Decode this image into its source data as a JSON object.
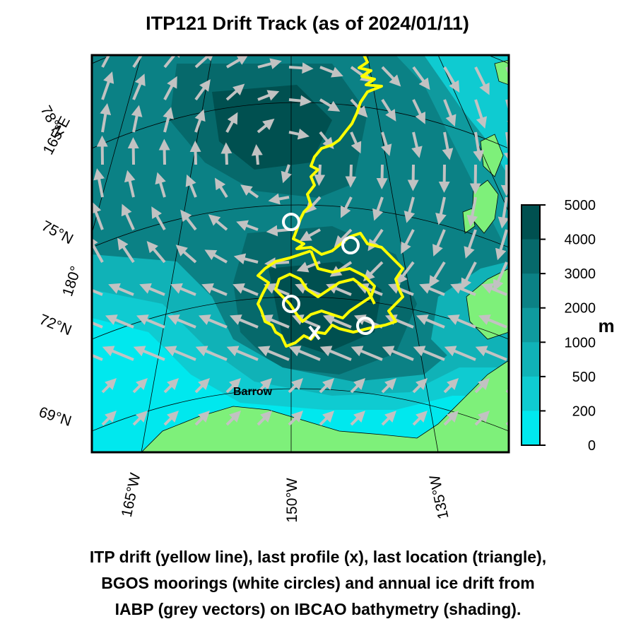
{
  "title": "ITP121 Drift Track (as of 2024/01/11)",
  "caption": [
    "ITP drift (yellow line), last profile (x), last location (triangle),",
    "BGOS moorings (white circles) and annual ice drift from",
    "IABP (grey vectors) on IBCAO bathymetry (shading)."
  ],
  "latitude_labels": [
    "78°N",
    "75°N",
    "72°N",
    "69°N"
  ],
  "longitude_labels": [
    "165°E",
    "180°",
    "165°W",
    "150°W",
    "135°W"
  ],
  "place_label": "Barrow",
  "colorbar": {
    "unit": "m",
    "ticks": [
      "5000",
      "4000",
      "3000",
      "2000",
      "1000",
      "500",
      "200",
      "0"
    ],
    "colors": [
      "#005050",
      "#06696b",
      "#0b8185",
      "#0f9a9e",
      "#10b2b7",
      "#0fcbd1",
      "#00e8ee"
    ]
  },
  "colors": {
    "land": "#7ef07a",
    "track": "#ffff00",
    "vectors": "#c2c2c2",
    "moorings": "#ffffff"
  },
  "map_symbols": {
    "track": "yellow-line",
    "last_profile": "x",
    "moorings": "white-circle",
    "ice_drift": "grey-arrow"
  }
}
